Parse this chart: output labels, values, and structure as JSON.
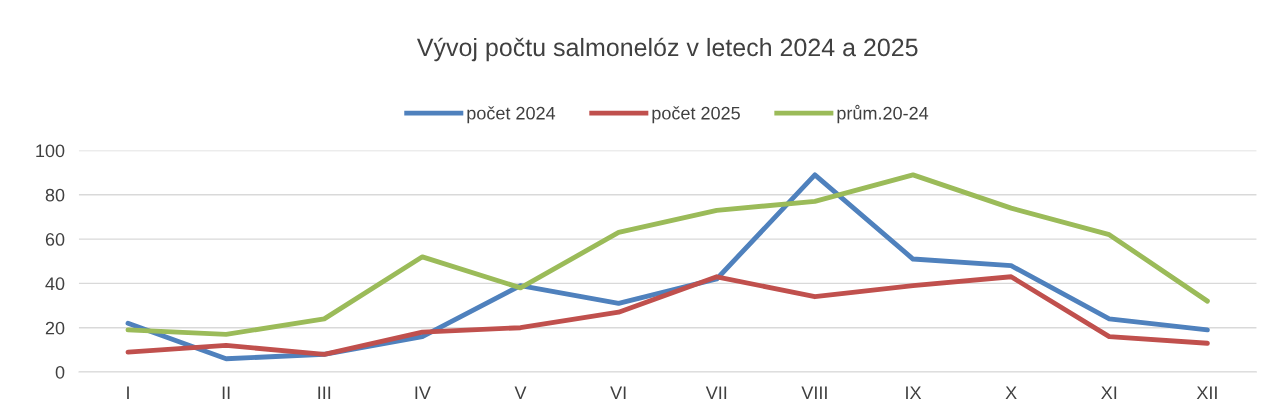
{
  "chart_data": {
    "type": "line",
    "title": "Vývoj počtu salmonelóz v letech 2024 a 2025",
    "categories": [
      "I",
      "II",
      "III",
      "IV",
      "V",
      "VI",
      "VII",
      "VIII",
      "IX",
      "X",
      "XI",
      "XII"
    ],
    "series": [
      {
        "name": "počet 2024",
        "color": "#4f81bd",
        "values": [
          22,
          6,
          8,
          16,
          39,
          31,
          42,
          89,
          51,
          48,
          24,
          19
        ]
      },
      {
        "name": "počet 2025",
        "color": "#c0504d",
        "values": [
          9,
          12,
          8,
          18,
          20,
          27,
          43,
          34,
          39,
          43,
          16,
          13
        ]
      },
      {
        "name": "prům.20-24",
        "color": "#9bbb59",
        "values": [
          19,
          17,
          24,
          52,
          38,
          63,
          73,
          77,
          89,
          74,
          62,
          32
        ]
      }
    ],
    "ylim": [
      0,
      100
    ],
    "yticks": [
      0,
      20,
      40,
      60,
      80,
      100
    ],
    "grid": "y",
    "legend": "top",
    "marker": "none",
    "line_style": "solid"
  }
}
